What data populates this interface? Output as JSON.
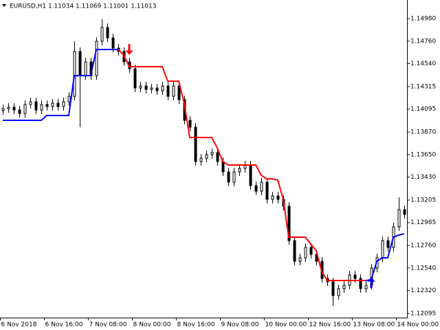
{
  "chart_data": {
    "type": "candlestick",
    "title": "EURUSD,H1  1.11034 1.11069 1.11001 1.11013",
    "categories": [
      "6 Nov 2018",
      null,
      null,
      null,
      null,
      null,
      null,
      null,
      "6 Nov 16:00",
      null,
      null,
      null,
      null,
      null,
      null,
      null,
      "7 Nov 08:00",
      null,
      null,
      null,
      null,
      null,
      null,
      null,
      "8 Nov 00:00",
      null,
      null,
      null,
      null,
      null,
      null,
      null,
      "8 Nov 16:00",
      null,
      null,
      null,
      null,
      null,
      null,
      null,
      "9 Nov 08:00",
      null,
      null,
      null,
      null,
      null,
      null,
      null,
      "10 Nov 00:00",
      null,
      null,
      null,
      null,
      null,
      null,
      null,
      "12 Nov 16:00",
      null,
      null,
      null,
      null,
      null,
      null,
      null,
      "13 Nov 08:00",
      null,
      null,
      null,
      null,
      null,
      null,
      null,
      "14 Nov 00:00",
      null
    ],
    "open": [
      1.1408,
      1.14099,
      1.14113,
      1.14086,
      1.14052,
      1.1414,
      1.14167,
      1.14086,
      1.1414,
      1.1412,
      1.14153,
      1.1412,
      1.14167,
      1.1422,
      1.14658,
      1.14422,
      1.14557,
      1.14422,
      1.14758,
      1.14893,
      1.14792,
      1.14691,
      1.14658,
      1.14557,
      1.14489,
      1.14301,
      1.14321,
      1.14288,
      1.14301,
      1.14274,
      1.14321,
      1.1422,
      1.14321,
      1.14187,
      1.13985,
      1.13918,
      1.13582,
      1.13615,
      1.13649,
      1.13669,
      1.13582,
      1.13481,
      1.1338,
      1.13481,
      1.13514,
      1.13548,
      1.13346,
      1.13292,
      1.1338,
      1.13212,
      1.13245,
      1.13212,
      1.13144,
      1.12808,
      1.12606,
      1.1264,
      1.12741,
      1.12674,
      1.12606,
      1.12438,
      1.12405,
      1.1227,
      1.12338,
      1.12371,
      1.12472,
      1.12438,
      1.12338,
      1.12371,
      1.12539,
      1.1264,
      1.12808,
      1.12741,
      1.12943,
      1.13111
    ],
    "high": [
      1.14139,
      1.14153,
      1.14153,
      1.14126,
      1.1418,
      1.14207,
      1.14207,
      1.1418,
      1.1418,
      1.14193,
      1.14193,
      1.14207,
      1.1426,
      1.14758,
      1.14698,
      1.14597,
      1.14597,
      1.14798,
      1.14974,
      1.14933,
      1.14832,
      1.14731,
      1.14698,
      1.14597,
      1.14529,
      1.14361,
      1.14361,
      1.14341,
      1.14341,
      1.14361,
      1.14361,
      1.14361,
      1.14361,
      1.14227,
      1.14025,
      1.13958,
      1.13655,
      1.13689,
      1.13709,
      1.13709,
      1.13622,
      1.13521,
      1.13521,
      1.13554,
      1.13588,
      1.13588,
      1.13386,
      1.1342,
      1.1342,
      1.13285,
      1.13285,
      1.13252,
      1.13184,
      1.12848,
      1.1268,
      1.12781,
      1.12781,
      1.12714,
      1.12646,
      1.12478,
      1.12445,
      1.12378,
      1.12411,
      1.12512,
      1.12512,
      1.12478,
      1.12411,
      1.12579,
      1.1268,
      1.12848,
      1.12848,
      1.12983,
      1.1323,
      1.13151
    ],
    "low": [
      1.1404,
      1.14059,
      1.14046,
      1.14012,
      1.14012,
      1.141,
      1.14046,
      1.14046,
      1.1408,
      1.1408,
      1.1408,
      1.1408,
      1.14127,
      1.1418,
      1.13918,
      1.14382,
      1.14382,
      1.14382,
      1.14718,
      1.14752,
      1.14651,
      1.14618,
      1.14517,
      1.14449,
      1.14261,
      1.14261,
      1.14248,
      1.14248,
      1.14234,
      1.14234,
      1.1418,
      1.1418,
      1.14147,
      1.13945,
      1.13878,
      1.13542,
      1.13542,
      1.13575,
      1.13609,
      1.13542,
      1.13441,
      1.1334,
      1.1334,
      1.13441,
      1.13474,
      1.13306,
      1.13252,
      1.13252,
      1.13172,
      1.13172,
      1.13172,
      1.13104,
      1.12768,
      1.12566,
      1.12566,
      1.126,
      1.12634,
      1.12566,
      1.12398,
      1.12365,
      1.12169,
      1.1223,
      1.12298,
      1.12331,
      1.12398,
      1.12298,
      1.12298,
      1.12331,
      1.12499,
      1.126,
      1.12701,
      1.12701,
      1.12903,
      1.13024
    ],
    "close": [
      1.14099,
      1.14113,
      1.14086,
      1.14052,
      1.1414,
      1.14167,
      1.14086,
      1.1414,
      1.1412,
      1.14153,
      1.1412,
      1.14167,
      1.1422,
      1.14658,
      1.14422,
      1.14557,
      1.14422,
      1.14758,
      1.14893,
      1.14792,
      1.14691,
      1.14658,
      1.14557,
      1.14489,
      1.14301,
      1.14321,
      1.14288,
      1.14301,
      1.14274,
      1.14321,
      1.1422,
      1.14321,
      1.14187,
      1.13985,
      1.13918,
      1.13582,
      1.13615,
      1.13649,
      1.13669,
      1.13582,
      1.13481,
      1.1338,
      1.13481,
      1.13514,
      1.13548,
      1.13346,
      1.13292,
      1.1338,
      1.13212,
      1.13245,
      1.13212,
      1.13144,
      1.12808,
      1.12606,
      1.1264,
      1.12741,
      1.12674,
      1.12606,
      1.12438,
      1.12405,
      1.1227,
      1.12338,
      1.12371,
      1.12472,
      1.12438,
      1.12338,
      1.12371,
      1.12539,
      1.1264,
      1.12808,
      1.12741,
      1.12943,
      1.13111,
      1.13064
    ],
    "candle_color": "#000000",
    "series": [
      {
        "color": "#0000ff",
        "values": [
          1.13985,
          1.13985,
          1.13985,
          1.13985,
          1.13985,
          1.13985,
          1.13985,
          1.13985,
          1.14032,
          1.14032,
          1.14032,
          1.14032,
          1.14032,
          1.14422,
          1.14422,
          1.14422,
          1.14422,
          1.14678,
          1.14678,
          1.14678,
          1.14678,
          1.14678,
          null,
          null,
          null,
          null,
          null,
          null,
          null,
          null,
          null,
          null,
          null,
          null,
          null,
          null,
          null,
          null,
          null,
          null,
          null,
          null,
          null,
          null,
          null,
          null,
          null,
          null,
          null,
          null,
          null,
          null,
          null,
          null,
          null,
          null,
          null,
          null,
          null,
          null,
          null,
          null,
          null,
          null,
          null,
          null,
          1.12418,
          1.12425,
          1.12606,
          1.1264,
          1.1264,
          1.12842,
          1.12862,
          1.12875
        ]
      },
      {
        "color": "#ff0000",
        "values": [
          null,
          null,
          null,
          null,
          null,
          null,
          null,
          null,
          null,
          null,
          null,
          null,
          null,
          null,
          null,
          null,
          null,
          null,
          null,
          null,
          null,
          1.14678,
          1.14624,
          1.1451,
          1.1451,
          1.1451,
          1.1451,
          1.1451,
          1.1451,
          1.1451,
          1.14368,
          1.14368,
          1.14368,
          1.14153,
          1.13817,
          1.13817,
          1.13817,
          1.13817,
          1.13817,
          1.13716,
          1.13582,
          1.13548,
          1.13548,
          1.13548,
          1.13548,
          1.13548,
          1.13548,
          1.13447,
          1.13413,
          1.13413,
          1.134,
          1.13212,
          1.12842,
          1.12842,
          1.12842,
          1.12842,
          1.12775,
          1.12708,
          1.12506,
          1.12418,
          1.12418,
          1.12418,
          1.12418,
          1.12418,
          1.12418,
          1.12418,
          1.12418,
          null,
          null,
          null,
          null,
          null,
          null,
          null
        ]
      }
    ],
    "signals": [
      {
        "index": 23,
        "value": 1.14624,
        "direction": "down",
        "color": "#ff0000"
      },
      {
        "index": 67,
        "value": 1.12451,
        "direction": "up",
        "color": "#0000ff"
      }
    ],
    "ylim": [
      1.12055,
      1.15162
    ],
    "yticks": [
      {
        "value": 1.1498,
        "label": "1.14980"
      },
      {
        "value": 1.1476,
        "label": "1.14760"
      },
      {
        "value": 1.1454,
        "label": "1.14540"
      },
      {
        "value": 1.14315,
        "label": "1.14315"
      },
      {
        "value": 1.14095,
        "label": "1.14095"
      },
      {
        "value": 1.1387,
        "label": "1.13870"
      },
      {
        "value": 1.1365,
        "label": "1.13650"
      },
      {
        "value": 1.1343,
        "label": "1.13430"
      },
      {
        "value": 1.13205,
        "label": "1.13205"
      },
      {
        "value": 1.12985,
        "label": "1.12985"
      },
      {
        "value": 1.1276,
        "label": "1.12760"
      },
      {
        "value": 1.1254,
        "label": "1.12540"
      },
      {
        "value": 1.1232,
        "label": "1.12320"
      },
      {
        "value": 1.12095,
        "label": "1.12095"
      }
    ],
    "grid": false
  }
}
